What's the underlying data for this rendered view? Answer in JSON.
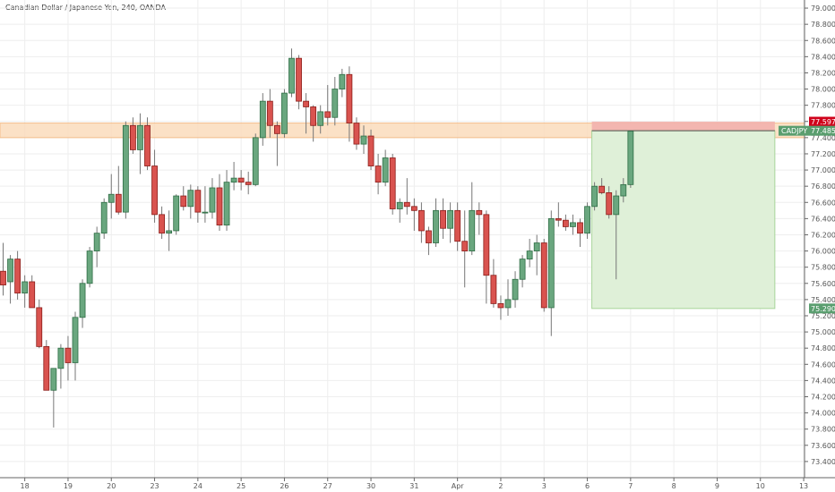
{
  "chart_data": {
    "type": "candlestick",
    "title": "Canadian Dollar / Japanese Yen, 240, OANDA",
    "ylim": [
      73.2,
      79.1
    ],
    "y_ticks": [
      79.0,
      78.8,
      78.6,
      78.4,
      78.2,
      78.0,
      77.8,
      77.6,
      77.4,
      77.2,
      77.0,
      76.8,
      76.6,
      76.4,
      76.2,
      76.0,
      75.8,
      75.6,
      75.4,
      75.2,
      75.0,
      74.8,
      74.6,
      74.4,
      74.2,
      74.0,
      73.8,
      73.6,
      73.4
    ],
    "y_tick_labels": [
      "79.000",
      "78.800",
      "78.600",
      "78.400",
      "78.200",
      "78.000",
      "77.800",
      "77.600",
      "77.400",
      "77.200",
      "77.000",
      "76.800",
      "76.600",
      "76.400",
      "76.200",
      "76.000",
      "75.800",
      "75.600",
      "75.400",
      "75.200",
      "75.000",
      "74.800",
      "74.600",
      "74.400",
      "74.200",
      "74.000",
      "73.800",
      "73.600",
      "73.400"
    ],
    "x_ticks": [
      {
        "label": "18",
        "bar": 3
      },
      {
        "label": "19",
        "bar": 9
      },
      {
        "label": "20",
        "bar": 15
      },
      {
        "label": "23",
        "bar": 21
      },
      {
        "label": "24",
        "bar": 27
      },
      {
        "label": "25",
        "bar": 33
      },
      {
        "label": "26",
        "bar": 39
      },
      {
        "label": "27",
        "bar": 45
      },
      {
        "label": "30",
        "bar": 51
      },
      {
        "label": "31",
        "bar": 57
      },
      {
        "label": "Apr",
        "bar": 63
      },
      {
        "label": "2",
        "bar": 69
      },
      {
        "label": "3",
        "bar": 75
      },
      {
        "label": "6",
        "bar": 81
      },
      {
        "label": "7",
        "bar": 87
      },
      {
        "label": "8",
        "bar": 93
      },
      {
        "label": "9",
        "bar": 99
      },
      {
        "label": "10",
        "bar": 105
      },
      {
        "label": "13",
        "bar": 111
      }
    ],
    "candles": [
      {
        "o": 75.75,
        "h": 76.1,
        "l": 75.45,
        "c": 75.58
      },
      {
        "o": 75.62,
        "h": 75.95,
        "l": 75.35,
        "c": 75.9
      },
      {
        "o": 75.9,
        "h": 76.0,
        "l": 75.4,
        "c": 75.48
      },
      {
        "o": 75.48,
        "h": 75.7,
        "l": 75.3,
        "c": 75.62
      },
      {
        "o": 75.62,
        "h": 75.7,
        "l": 75.3,
        "c": 75.3
      },
      {
        "o": 75.3,
        "h": 75.4,
        "l": 74.8,
        "c": 74.82
      },
      {
        "o": 74.82,
        "h": 74.9,
        "l": 74.28,
        "c": 74.28
      },
      {
        "o": 74.28,
        "h": 74.55,
        "l": 73.82,
        "c": 74.55
      },
      {
        "o": 74.55,
        "h": 74.85,
        "l": 74.3,
        "c": 74.8
      },
      {
        "o": 74.8,
        "h": 74.95,
        "l": 74.4,
        "c": 74.62
      },
      {
        "o": 74.62,
        "h": 75.25,
        "l": 74.4,
        "c": 75.18
      },
      {
        "o": 75.18,
        "h": 75.65,
        "l": 75.05,
        "c": 75.6
      },
      {
        "o": 75.6,
        "h": 76.05,
        "l": 75.55,
        "c": 76.0
      },
      {
        "o": 76.0,
        "h": 76.3,
        "l": 75.8,
        "c": 76.22
      },
      {
        "o": 76.22,
        "h": 76.65,
        "l": 76.15,
        "c": 76.6
      },
      {
        "o": 76.6,
        "h": 76.95,
        "l": 76.4,
        "c": 76.7
      },
      {
        "o": 76.7,
        "h": 77.05,
        "l": 76.45,
        "c": 76.48
      },
      {
        "o": 76.48,
        "h": 77.6,
        "l": 76.4,
        "c": 77.55
      },
      {
        "o": 77.55,
        "h": 77.65,
        "l": 77.2,
        "c": 77.25
      },
      {
        "o": 77.25,
        "h": 77.7,
        "l": 76.95,
        "c": 77.55
      },
      {
        "o": 77.55,
        "h": 77.65,
        "l": 77.0,
        "c": 77.05
      },
      {
        "o": 77.05,
        "h": 77.25,
        "l": 76.35,
        "c": 76.45
      },
      {
        "o": 76.45,
        "h": 76.55,
        "l": 76.15,
        "c": 76.22
      },
      {
        "o": 76.22,
        "h": 76.5,
        "l": 76.0,
        "c": 76.25
      },
      {
        "o": 76.25,
        "h": 76.7,
        "l": 76.2,
        "c": 76.68
      },
      {
        "o": 76.68,
        "h": 76.8,
        "l": 76.5,
        "c": 76.55
      },
      {
        "o": 76.55,
        "h": 76.82,
        "l": 76.4,
        "c": 76.75
      },
      {
        "o": 76.75,
        "h": 76.8,
        "l": 76.35,
        "c": 76.48
      },
      {
        "o": 76.48,
        "h": 76.8,
        "l": 76.35,
        "c": 76.48
      },
      {
        "o": 76.48,
        "h": 76.9,
        "l": 76.4,
        "c": 76.78
      },
      {
        "o": 76.78,
        "h": 76.95,
        "l": 76.25,
        "c": 76.32
      },
      {
        "o": 76.32,
        "h": 77.0,
        "l": 76.25,
        "c": 76.85
      },
      {
        "o": 76.85,
        "h": 77.1,
        "l": 76.75,
        "c": 76.9
      },
      {
        "o": 76.9,
        "h": 77.0,
        "l": 76.75,
        "c": 76.85
      },
      {
        "o": 76.85,
        "h": 76.98,
        "l": 76.7,
        "c": 76.82
      },
      {
        "o": 76.82,
        "h": 77.45,
        "l": 76.8,
        "c": 77.4
      },
      {
        "o": 77.4,
        "h": 77.95,
        "l": 77.3,
        "c": 77.85
      },
      {
        "o": 77.85,
        "h": 78.0,
        "l": 77.4,
        "c": 77.55
      },
      {
        "o": 77.55,
        "h": 77.6,
        "l": 77.05,
        "c": 77.45
      },
      {
        "o": 77.45,
        "h": 78.0,
        "l": 77.4,
        "c": 77.95
      },
      {
        "o": 77.95,
        "h": 78.5,
        "l": 77.9,
        "c": 78.38
      },
      {
        "o": 78.38,
        "h": 78.42,
        "l": 77.75,
        "c": 77.85
      },
      {
        "o": 77.85,
        "h": 77.95,
        "l": 77.45,
        "c": 77.78
      },
      {
        "o": 77.78,
        "h": 77.8,
        "l": 77.35,
        "c": 77.55
      },
      {
        "o": 77.55,
        "h": 77.8,
        "l": 77.45,
        "c": 77.72
      },
      {
        "o": 77.72,
        "h": 78.05,
        "l": 77.55,
        "c": 77.65
      },
      {
        "o": 77.65,
        "h": 78.15,
        "l": 77.55,
        "c": 78.0
      },
      {
        "o": 78.0,
        "h": 78.25,
        "l": 77.9,
        "c": 78.18
      },
      {
        "o": 78.18,
        "h": 78.28,
        "l": 77.35,
        "c": 77.58
      },
      {
        "o": 77.58,
        "h": 77.65,
        "l": 77.25,
        "c": 77.32
      },
      {
        "o": 77.32,
        "h": 77.55,
        "l": 77.2,
        "c": 77.42
      },
      {
        "o": 77.42,
        "h": 77.5,
        "l": 77.0,
        "c": 77.05
      },
      {
        "o": 77.05,
        "h": 77.2,
        "l": 76.7,
        "c": 76.85
      },
      {
        "o": 76.85,
        "h": 77.25,
        "l": 76.8,
        "c": 77.15
      },
      {
        "o": 77.15,
        "h": 77.2,
        "l": 76.45,
        "c": 76.52
      },
      {
        "o": 76.52,
        "h": 76.65,
        "l": 76.35,
        "c": 76.6
      },
      {
        "o": 76.6,
        "h": 76.9,
        "l": 76.45,
        "c": 76.55
      },
      {
        "o": 76.55,
        "h": 76.65,
        "l": 76.25,
        "c": 76.5
      },
      {
        "o": 76.5,
        "h": 76.6,
        "l": 76.1,
        "c": 76.25
      },
      {
        "o": 76.25,
        "h": 76.3,
        "l": 75.95,
        "c": 76.1
      },
      {
        "o": 76.1,
        "h": 76.65,
        "l": 76.05,
        "c": 76.5
      },
      {
        "o": 76.5,
        "h": 76.65,
        "l": 76.15,
        "c": 76.28
      },
      {
        "o": 76.28,
        "h": 76.6,
        "l": 76.1,
        "c": 76.5
      },
      {
        "o": 76.5,
        "h": 76.6,
        "l": 76.0,
        "c": 76.12
      },
      {
        "o": 76.12,
        "h": 76.5,
        "l": 75.55,
        "c": 76.0
      },
      {
        "o": 76.0,
        "h": 76.85,
        "l": 75.95,
        "c": 76.5
      },
      {
        "o": 76.5,
        "h": 76.6,
        "l": 76.2,
        "c": 76.45
      },
      {
        "o": 76.45,
        "h": 76.5,
        "l": 75.35,
        "c": 75.7
      },
      {
        "o": 75.7,
        "h": 75.9,
        "l": 75.3,
        "c": 75.35
      },
      {
        "o": 75.35,
        "h": 75.45,
        "l": 75.15,
        "c": 75.3
      },
      {
        "o": 75.3,
        "h": 75.65,
        "l": 75.2,
        "c": 75.4
      },
      {
        "o": 75.4,
        "h": 75.75,
        "l": 75.3,
        "c": 75.65
      },
      {
        "o": 75.65,
        "h": 75.95,
        "l": 75.55,
        "c": 75.9
      },
      {
        "o": 75.9,
        "h": 76.15,
        "l": 75.8,
        "c": 76.0
      },
      {
        "o": 76.0,
        "h": 76.2,
        "l": 75.7,
        "c": 76.1
      },
      {
        "o": 76.1,
        "h": 76.15,
        "l": 75.25,
        "c": 75.3
      },
      {
        "o": 75.3,
        "h": 76.5,
        "l": 74.95,
        "c": 76.4
      },
      {
        "o": 76.4,
        "h": 76.6,
        "l": 76.3,
        "c": 76.38
      },
      {
        "o": 76.38,
        "h": 76.45,
        "l": 76.25,
        "c": 76.3
      },
      {
        "o": 76.3,
        "h": 76.45,
        "l": 76.2,
        "c": 76.35
      },
      {
        "o": 76.35,
        "h": 76.4,
        "l": 76.05,
        "c": 76.22
      },
      {
        "o": 76.22,
        "h": 76.6,
        "l": 76.15,
        "c": 76.55
      },
      {
        "o": 76.55,
        "h": 76.85,
        "l": 76.5,
        "c": 76.8
      },
      {
        "o": 76.8,
        "h": 76.9,
        "l": 76.7,
        "c": 76.72
      },
      {
        "o": 76.72,
        "h": 76.8,
        "l": 76.4,
        "c": 76.45
      },
      {
        "o": 76.45,
        "h": 76.75,
        "l": 75.65,
        "c": 76.68
      },
      {
        "o": 76.68,
        "h": 76.9,
        "l": 76.6,
        "c": 76.82
      },
      {
        "o": 76.82,
        "h": 77.48,
        "l": 76.78,
        "c": 77.48
      }
    ],
    "annotations": {
      "resistance_zone": {
        "from": 77.4,
        "to": 77.58
      },
      "short_position": {
        "entry": 77.485,
        "stop": 77.597,
        "target": 75.29,
        "start_bar": 82,
        "end_bar": 107
      },
      "price_labels": [
        {
          "name": "stop-price-label",
          "value": 77.597,
          "text": "77.597",
          "color": "#d0021b"
        },
        {
          "name": "current-price-label",
          "value": 77.485,
          "symbol": "CADJPY",
          "text": "77.485",
          "color": "#5a9e6f"
        },
        {
          "name": "target-price-label",
          "value": 75.29,
          "text": "75.290",
          "color": "#5a9e6f"
        }
      ]
    },
    "colors": {
      "up": "#6aa77f",
      "up_border": "#2f6d45",
      "down": "#d9534f",
      "down_border": "#8b1e1a",
      "zone": "#fbdcbd",
      "zone_border": "#f5b57a",
      "stop_zone": "#f2b1ad",
      "target_zone": "#dff0d8",
      "target_border": "#a8d49a",
      "grid": "#eeeeee",
      "axis": "#666666"
    },
    "grid": true
  }
}
